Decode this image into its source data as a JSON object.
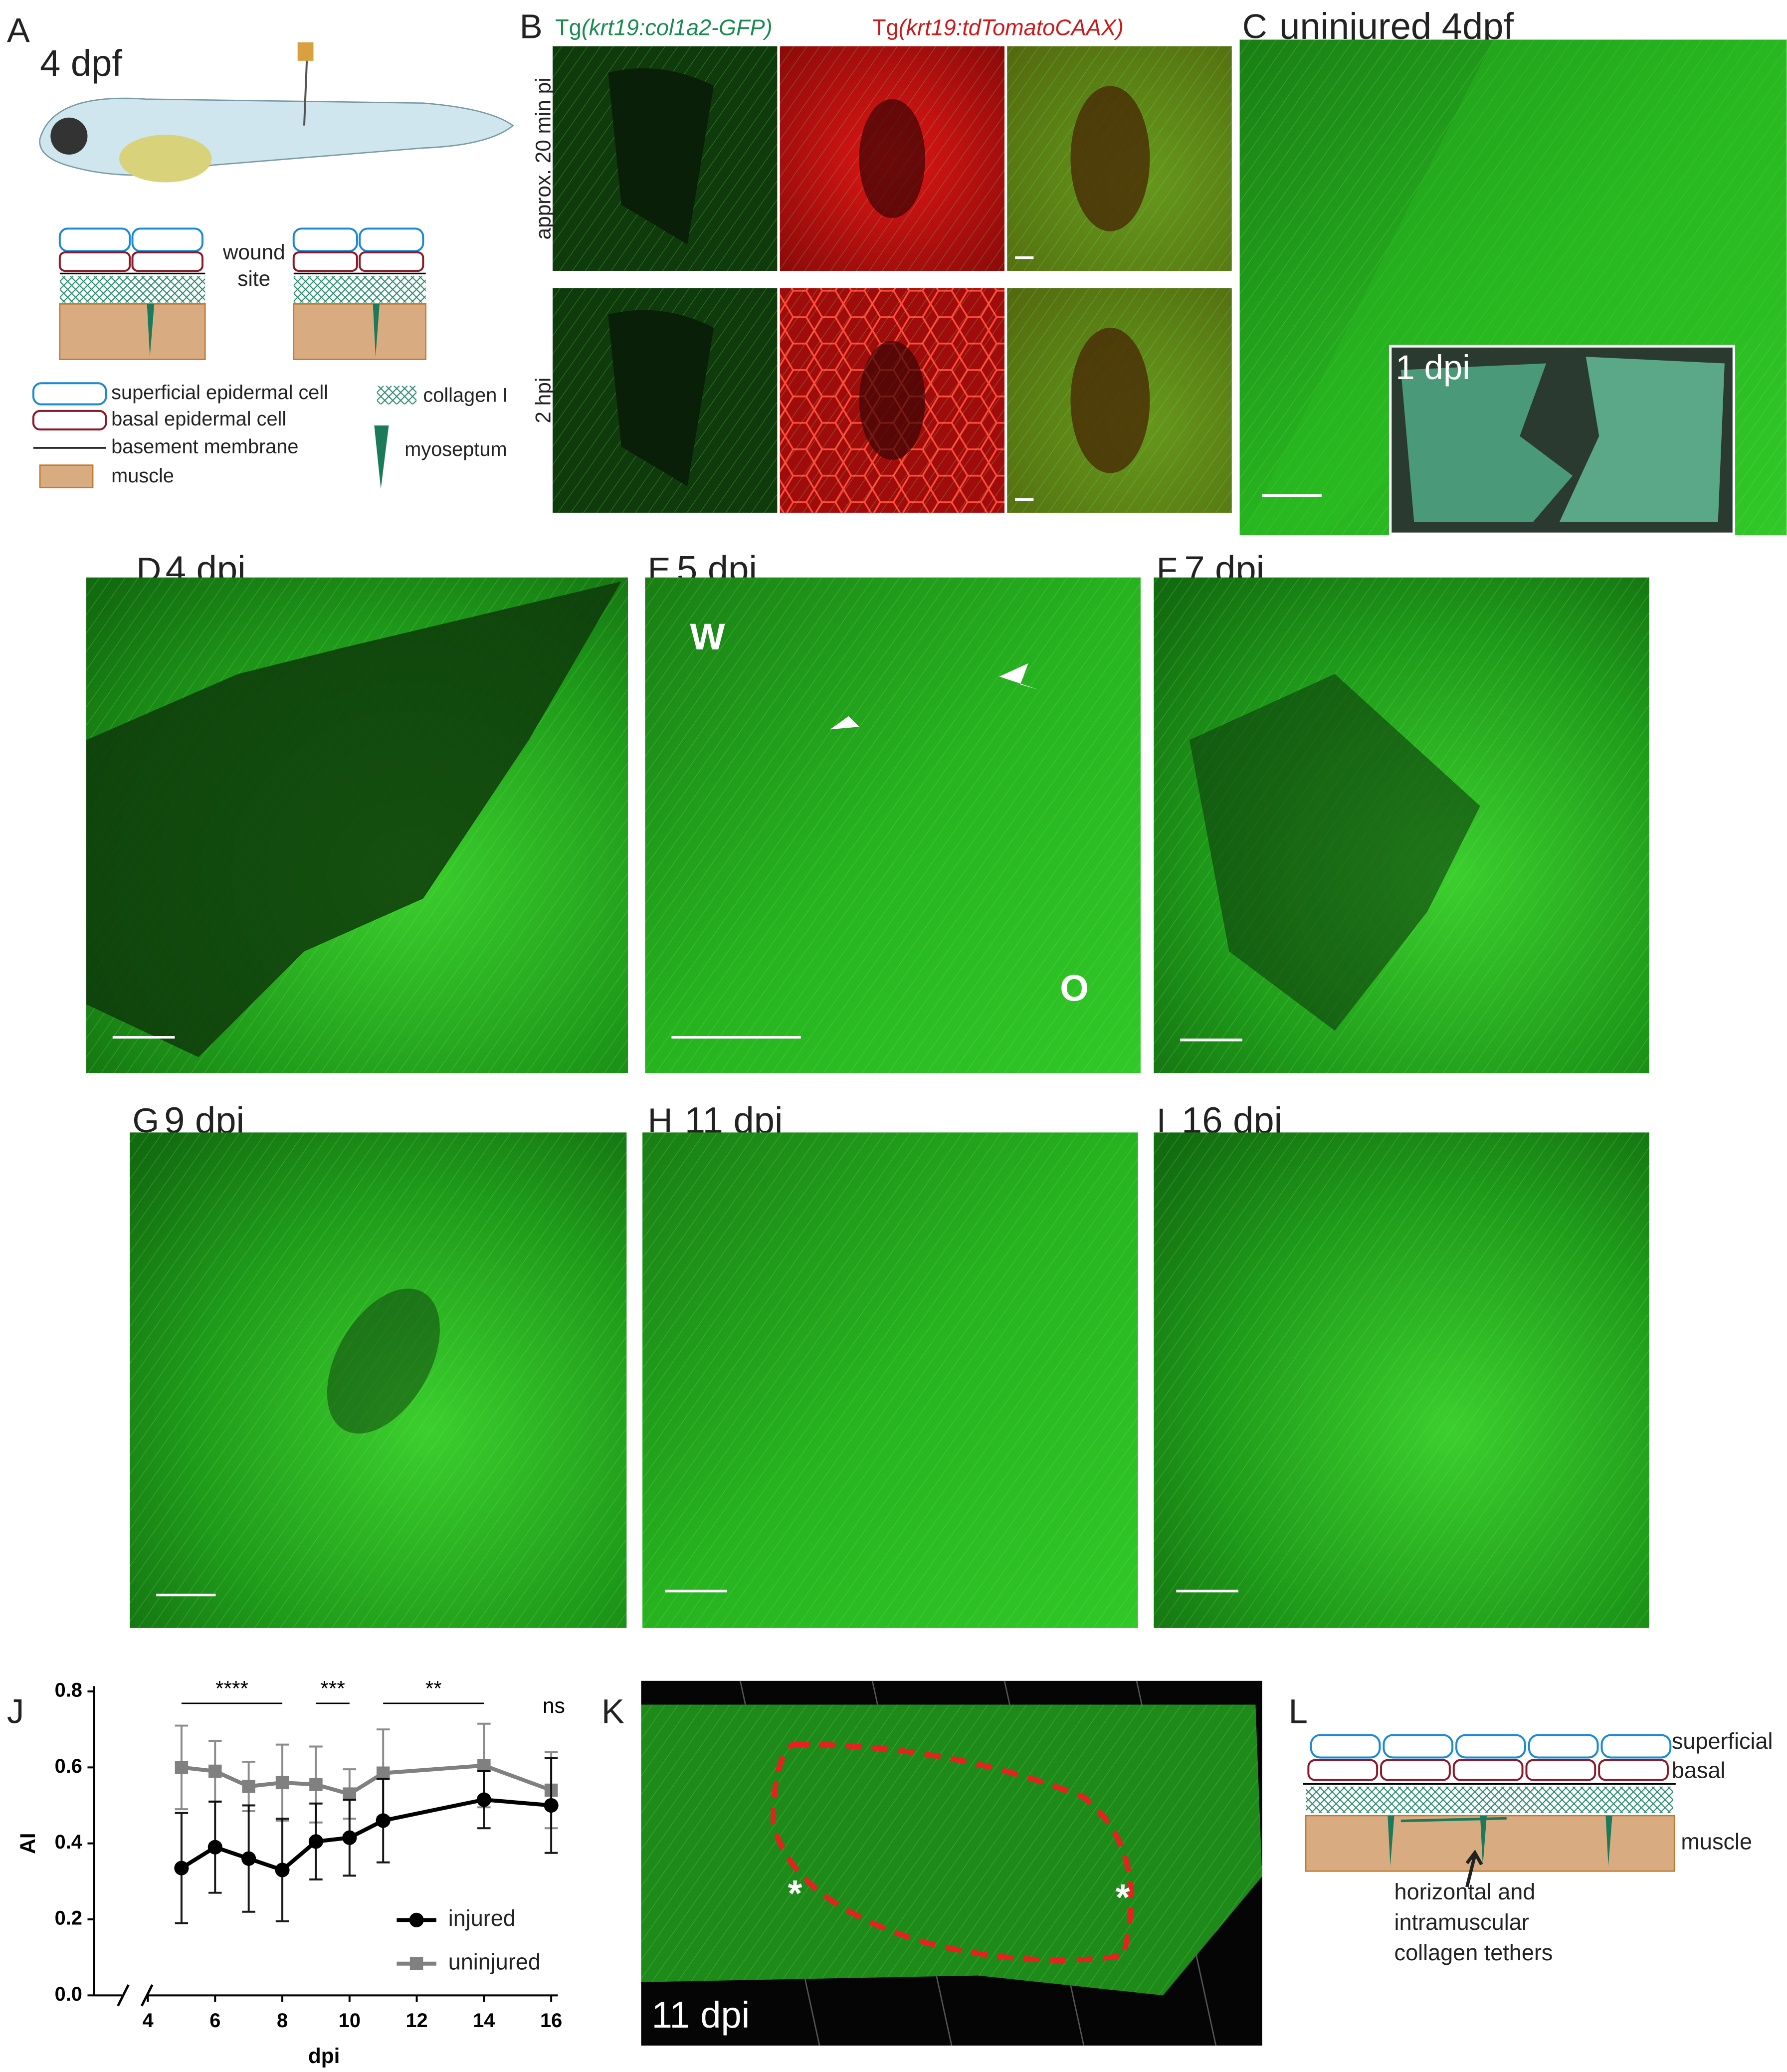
{
  "panels": {
    "A": {
      "label": "A",
      "age": "4 dpf",
      "wound": [
        "wound",
        "site"
      ],
      "legend": [
        "superficial epidermal cell",
        "basal epidermal cell",
        "basement membrane",
        "muscle",
        "collagen I",
        "myoseptum"
      ]
    },
    "B": {
      "label": "B",
      "header": [
        {
          "prefix": "Tg",
          "construct": "(krt19:col1a2-GFP)"
        },
        {
          "prefix": "Tg",
          "construct": "(krt19:tdTomatoCAAX)"
        }
      ],
      "rows": [
        "approx. 20 min pi",
        "2 hpi"
      ]
    },
    "C": {
      "label": "C",
      "title": "uninjured 4dpf",
      "inset": "1 dpi"
    },
    "D": {
      "label": "D",
      "title": "4 dpi"
    },
    "E": {
      "label": "E",
      "title": "5 dpi",
      "marks": [
        "W",
        "O"
      ]
    },
    "F": {
      "label": "F",
      "title": "7 dpi"
    },
    "G": {
      "label": "G",
      "title": "9 dpi"
    },
    "H": {
      "label": "H",
      "title": "11 dpi"
    },
    "I": {
      "label": "I",
      "title": "16 dpi"
    },
    "J": {
      "label": "J"
    },
    "K": {
      "label": "K",
      "title": "11 dpi",
      "marks": [
        "*",
        "*"
      ]
    },
    "L": {
      "label": "L",
      "texts": [
        "superficial",
        "basal",
        "muscle",
        "horizontal and",
        "intramuscular",
        "collagen tethers"
      ]
    }
  },
  "chart_data": {
    "type": "line",
    "xlabel": "dpi",
    "ylabel": "AI",
    "x": [
      5,
      6,
      7,
      8,
      9,
      10,
      11,
      14,
      16
    ],
    "xlim": [
      2.4,
      16.2
    ],
    "xticks": [
      4,
      6,
      8,
      10,
      12,
      14,
      16
    ],
    "ylim": [
      0,
      0.8
    ],
    "yticks": [
      {
        "value": 0,
        "label": "0.0"
      },
      {
        "value": 0.2,
        "label": "0.2"
      },
      {
        "value": 0.4,
        "label": "0.4"
      },
      {
        "value": 0.6,
        "label": "0.6"
      },
      {
        "value": 0.8,
        "label": "0.8"
      }
    ],
    "series": [
      {
        "name": "injured",
        "color": "#000000",
        "marker": "circle",
        "values": [
          0.335,
          0.39,
          0.36,
          0.33,
          0.405,
          0.415,
          0.46,
          0.515,
          0.5
        ],
        "errors": [
          0.145,
          0.12,
          0.14,
          0.135,
          0.1,
          0.1,
          0.11,
          0.075,
          0.125
        ]
      },
      {
        "name": "uninjured",
        "color": "#808080",
        "marker": "square",
        "values": [
          0.6,
          0.59,
          0.55,
          0.56,
          0.555,
          0.53,
          0.585,
          0.605,
          0.54
        ],
        "errors": [
          0.11,
          0.08,
          0.065,
          0.1,
          0.1,
          0.065,
          0.115,
          0.11,
          0.1
        ]
      }
    ],
    "annotations": [
      {
        "text": "****",
        "x0": 5,
        "x1": 8
      },
      {
        "text": "***",
        "x0": 9,
        "x1": 10
      },
      {
        "text": "**",
        "x0": 11,
        "x1": 14
      },
      {
        "text": "ns",
        "x": 16
      }
    ]
  }
}
